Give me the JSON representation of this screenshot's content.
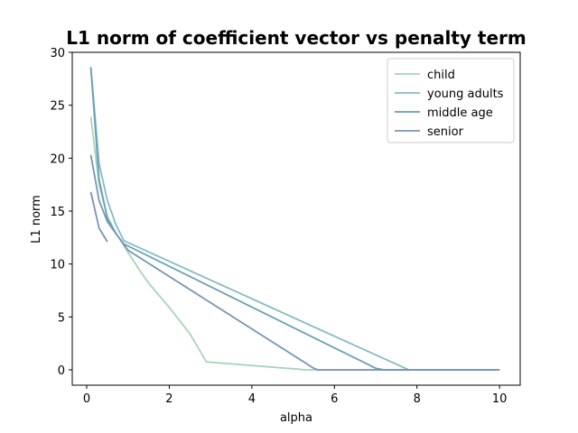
{
  "chart_data": {
    "type": "line",
    "title": "L1 norm of coefficient vector vs penalty term",
    "xlabel": "alpha",
    "ylabel": "L1 norm",
    "xlim": [
      -0.35,
      10.5
    ],
    "ylim": [
      -1.45,
      30
    ],
    "xticks": [
      0,
      2,
      4,
      6,
      8,
      10
    ],
    "yticks": [
      0,
      5,
      10,
      15,
      20,
      25,
      30
    ],
    "grid": false,
    "legend_position": "top-right",
    "series": [
      {
        "name": "child",
        "color": "#a8d5ba",
        "x": [
          0.1,
          0.3,
          0.5,
          0.7,
          1.0,
          1.3,
          1.5,
          2.0,
          2.5,
          2.9,
          5.0,
          5.3,
          5.7,
          6.0,
          8.0,
          10.0
        ],
        "y": [
          23.9,
          17.5,
          14.5,
          13.0,
          11.1,
          9.3,
          8.2,
          5.9,
          3.4,
          0.75,
          0.1,
          0.0,
          0.0,
          0.0,
          0.0,
          0.0
        ]
      },
      {
        "name": "young adults",
        "color": "#86bcc3",
        "x": [
          0.1,
          0.3,
          0.5,
          0.7,
          0.9,
          7.8,
          10.0
        ],
        "y": [
          28.6,
          19.5,
          16.0,
          13.8,
          12.2,
          0.0,
          0.0
        ]
      },
      {
        "name": "middle age",
        "color": "#6a9fb5",
        "x": [
          0.1,
          0.3,
          0.5,
          0.7,
          0.9,
          7.0,
          7.2,
          10.0
        ],
        "y": [
          28.6,
          18.0,
          14.3,
          12.9,
          11.9,
          0.15,
          0.0,
          0.0
        ]
      },
      {
        "name": "senior",
        "color": "#7895b2",
        "x": [
          0.1,
          0.3,
          0.5,
          1.0,
          5.5,
          5.6,
          10.0
        ],
        "y": [
          20.3,
          16.0,
          14.0,
          11.3,
          0.15,
          0.0,
          0.0
        ]
      },
      {
        "name": "",
        "color": "#7895b2",
        "x": [
          0.1,
          0.3,
          0.5
        ],
        "y": [
          16.8,
          13.4,
          12.1
        ]
      }
    ]
  }
}
